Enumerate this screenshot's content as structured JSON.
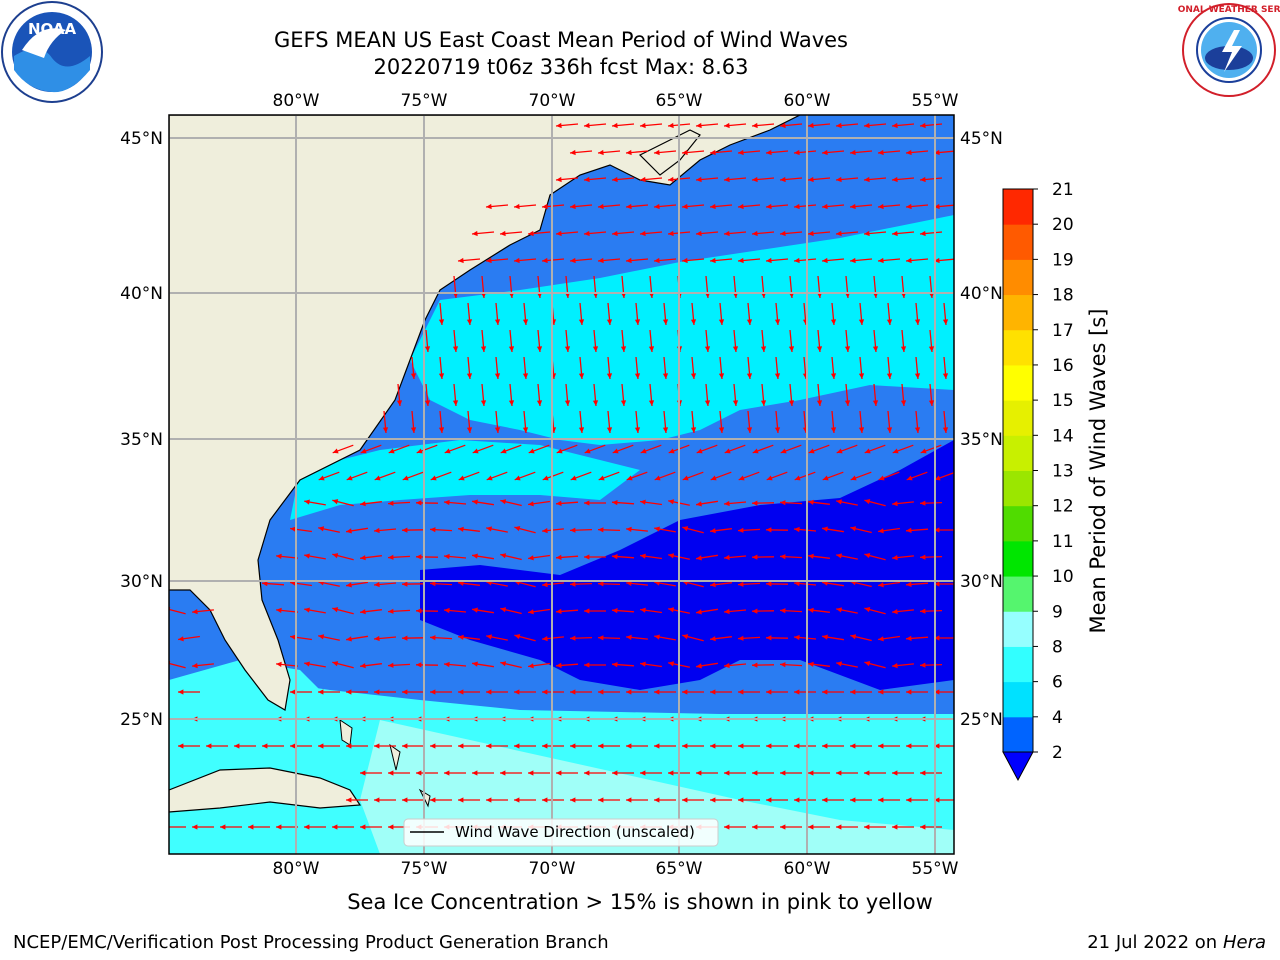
{
  "title_line1": "GEFS MEAN US East Coast Mean Period of Wind Waves",
  "title_line2": "20220719 t06z 336h fcst   Max: 8.63",
  "colorbar": {
    "label": "Mean Period of Wind Waves [s]",
    "ticks": [
      "2",
      "4",
      "6",
      "8",
      "9",
      "10",
      "11",
      "12",
      "13",
      "14",
      "15",
      "16",
      "17",
      "18",
      "19",
      "20",
      "21"
    ],
    "colors": [
      "#0064ff",
      "#00e1ff",
      "#32ffff",
      "#96ffff",
      "#55f56e",
      "#00e600",
      "#50dc00",
      "#9be600",
      "#c8f000",
      "#e6f000",
      "#ffff00",
      "#ffe100",
      "#ffb400",
      "#ff8c00",
      "#ff5a00",
      "#ff2800"
    ],
    "under_color": "#0000ff"
  },
  "lon_labels": [
    "80°W",
    "75°W",
    "70°W",
    "65°W",
    "60°W",
    "55°W"
  ],
  "lat_labels": [
    "45°N",
    "40°N",
    "35°N",
    "30°N",
    "25°N"
  ],
  "legend": "Wind Wave Direction (unscaled)",
  "ice_note": "Sea Ice Concentration > 15% is shown in pink to yellow",
  "footer_left": "NCEP/EMC/Verification Post Processing Product Generation Branch",
  "footer_right_date": "21 Jul 2022 on",
  "footer_right_host": "Hera",
  "noaa_logo_text": "NOAA",
  "nws_logo_text": "NATIONAL WEATHER SERVICE",
  "colors": {
    "land": "#efeedc",
    "wave_2_4": "#2a7cf2",
    "wave_4_6": "#00f0ff",
    "wave_6_8": "#40ffff",
    "wave_8_9": "#a0fff8",
    "wave_under_2": "#0000f0",
    "arrow": "#ff0000"
  }
}
